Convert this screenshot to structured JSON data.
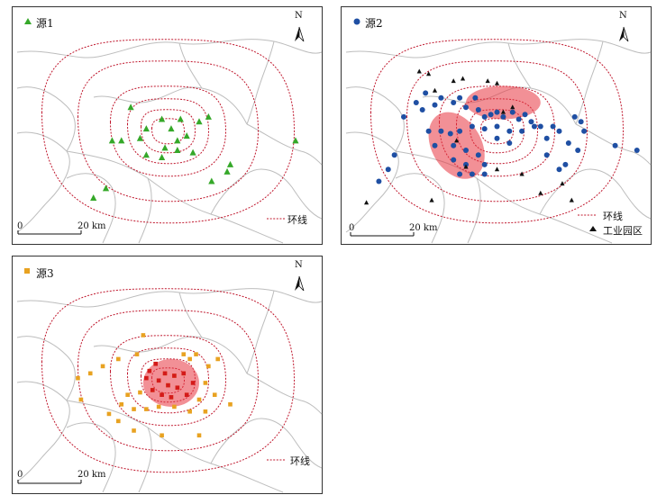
{
  "panels": [
    {
      "id": "p1",
      "title": "源1",
      "marker_color": "#35a829",
      "north_label": "N",
      "scale_zero": "0",
      "scale_text": "20 km",
      "legend": {
        "ring": "环线"
      },
      "points": [
        [
          0.38,
          0.42
        ],
        [
          0.48,
          0.47
        ],
        [
          0.54,
          0.47
        ],
        [
          0.6,
          0.48
        ],
        [
          0.63,
          0.46
        ],
        [
          0.51,
          0.51
        ],
        [
          0.43,
          0.51
        ],
        [
          0.41,
          0.55
        ],
        [
          0.53,
          0.56
        ],
        [
          0.56,
          0.54
        ],
        [
          0.35,
          0.56
        ],
        [
          0.32,
          0.56
        ],
        [
          0.49,
          0.59
        ],
        [
          0.53,
          0.6
        ],
        [
          0.58,
          0.61
        ],
        [
          0.48,
          0.63
        ],
        [
          0.43,
          0.62
        ],
        [
          0.7,
          0.66
        ],
        [
          0.64,
          0.73
        ],
        [
          0.69,
          0.69
        ],
        [
          0.3,
          0.76
        ],
        [
          0.26,
          0.8
        ],
        [
          0.91,
          0.56
        ]
      ]
    },
    {
      "id": "p2",
      "title": "源2",
      "marker_color": "#1f4fa3",
      "north_label": "N",
      "scale_zero": "0",
      "scale_text": "20 km",
      "legend": {
        "ring": "环线",
        "industrial": "工业园区"
      },
      "industrial_marker_color": "#111111",
      "points": [
        [
          0.27,
          0.36
        ],
        [
          0.24,
          0.4
        ],
        [
          0.3,
          0.41
        ],
        [
          0.32,
          0.38
        ],
        [
          0.36,
          0.4
        ],
        [
          0.38,
          0.38
        ],
        [
          0.4,
          0.42
        ],
        [
          0.43,
          0.38
        ],
        [
          0.44,
          0.43
        ],
        [
          0.46,
          0.46
        ],
        [
          0.48,
          0.45
        ],
        [
          0.5,
          0.44
        ],
        [
          0.52,
          0.46
        ],
        [
          0.55,
          0.44
        ],
        [
          0.57,
          0.47
        ],
        [
          0.59,
          0.45
        ],
        [
          0.61,
          0.48
        ],
        [
          0.62,
          0.5
        ],
        [
          0.58,
          0.52
        ],
        [
          0.54,
          0.52
        ],
        [
          0.5,
          0.5
        ],
        [
          0.46,
          0.51
        ],
        [
          0.42,
          0.5
        ],
        [
          0.38,
          0.52
        ],
        [
          0.35,
          0.53
        ],
        [
          0.32,
          0.52
        ],
        [
          0.28,
          0.52
        ],
        [
          0.3,
          0.58
        ],
        [
          0.36,
          0.58
        ],
        [
          0.4,
          0.6
        ],
        [
          0.44,
          0.62
        ],
        [
          0.36,
          0.64
        ],
        [
          0.4,
          0.66
        ],
        [
          0.42,
          0.7
        ],
        [
          0.38,
          0.7
        ],
        [
          0.46,
          0.7
        ],
        [
          0.46,
          0.66
        ],
        [
          0.5,
          0.55
        ],
        [
          0.54,
          0.57
        ],
        [
          0.64,
          0.5
        ],
        [
          0.66,
          0.55
        ],
        [
          0.68,
          0.5
        ],
        [
          0.7,
          0.52
        ],
        [
          0.66,
          0.62
        ],
        [
          0.7,
          0.68
        ],
        [
          0.73,
          0.57
        ],
        [
          0.72,
          0.66
        ],
        [
          0.75,
          0.46
        ],
        [
          0.77,
          0.48
        ],
        [
          0.78,
          0.52
        ],
        [
          0.76,
          0.6
        ],
        [
          0.88,
          0.58
        ],
        [
          0.95,
          0.6
        ],
        [
          0.17,
          0.62
        ],
        [
          0.15,
          0.68
        ],
        [
          0.12,
          0.73
        ],
        [
          0.2,
          0.46
        ],
        [
          0.26,
          0.43
        ]
      ],
      "industrial": [
        [
          0.25,
          0.27
        ],
        [
          0.28,
          0.28
        ],
        [
          0.3,
          0.35
        ],
        [
          0.36,
          0.31
        ],
        [
          0.39,
          0.3
        ],
        [
          0.47,
          0.31
        ],
        [
          0.5,
          0.32
        ],
        [
          0.52,
          0.44
        ],
        [
          0.55,
          0.42
        ],
        [
          0.37,
          0.56
        ],
        [
          0.58,
          0.7
        ],
        [
          0.5,
          0.68
        ],
        [
          0.4,
          0.67
        ],
        [
          0.71,
          0.74
        ],
        [
          0.74,
          0.81
        ],
        [
          0.64,
          0.78
        ],
        [
          0.29,
          0.81
        ],
        [
          0.08,
          0.82
        ]
      ],
      "ellipses": [
        [
          0.52,
          0.4,
          0.12,
          0.07,
          0
        ],
        [
          0.37,
          0.58,
          0.08,
          0.15,
          -30
        ]
      ]
    },
    {
      "id": "p3",
      "title": "源3",
      "marker_color": "#e8a221",
      "north_label": "N",
      "scale_zero": "0",
      "scale_text": "20 km",
      "legend": {
        "ring": "环线"
      },
      "points": [
        [
          0.42,
          0.33
        ],
        [
          0.34,
          0.43
        ],
        [
          0.4,
          0.41
        ],
        [
          0.29,
          0.46
        ],
        [
          0.25,
          0.49
        ],
        [
          0.21,
          0.51
        ],
        [
          0.55,
          0.41
        ],
        [
          0.57,
          0.43
        ],
        [
          0.59,
          0.41
        ],
        [
          0.46,
          0.45
        ],
        [
          0.44,
          0.48
        ],
        [
          0.49,
          0.49
        ],
        [
          0.52,
          0.5
        ],
        [
          0.55,
          0.49
        ],
        [
          0.47,
          0.52
        ],
        [
          0.5,
          0.54
        ],
        [
          0.53,
          0.55
        ],
        [
          0.45,
          0.56
        ],
        [
          0.48,
          0.58
        ],
        [
          0.51,
          0.59
        ],
        [
          0.56,
          0.58
        ],
        [
          0.6,
          0.6
        ],
        [
          0.41,
          0.57
        ],
        [
          0.37,
          0.58
        ],
        [
          0.35,
          0.62
        ],
        [
          0.39,
          0.64
        ],
        [
          0.43,
          0.64
        ],
        [
          0.47,
          0.63
        ],
        [
          0.52,
          0.63
        ],
        [
          0.57,
          0.65
        ],
        [
          0.62,
          0.65
        ],
        [
          0.65,
          0.58
        ],
        [
          0.62,
          0.53
        ],
        [
          0.22,
          0.6
        ],
        [
          0.31,
          0.66
        ],
        [
          0.7,
          0.62
        ],
        [
          0.39,
          0.73
        ],
        [
          0.48,
          0.75
        ],
        [
          0.6,
          0.75
        ],
        [
          0.34,
          0.69
        ],
        [
          0.66,
          0.43
        ],
        [
          0.63,
          0.46
        ]
      ],
      "red_points": [
        [
          0.46,
          0.45
        ],
        [
          0.44,
          0.48
        ],
        [
          0.49,
          0.49
        ],
        [
          0.52,
          0.5
        ],
        [
          0.55,
          0.49
        ],
        [
          0.47,
          0.52
        ],
        [
          0.5,
          0.54
        ],
        [
          0.53,
          0.55
        ],
        [
          0.45,
          0.56
        ],
        [
          0.48,
          0.58
        ],
        [
          0.51,
          0.59
        ],
        [
          0.56,
          0.58
        ],
        [
          0.43,
          0.51
        ],
        [
          0.58,
          0.53
        ]
      ],
      "ellipses": [
        [
          0.51,
          0.53,
          0.09,
          0.1,
          0
        ]
      ]
    }
  ]
}
